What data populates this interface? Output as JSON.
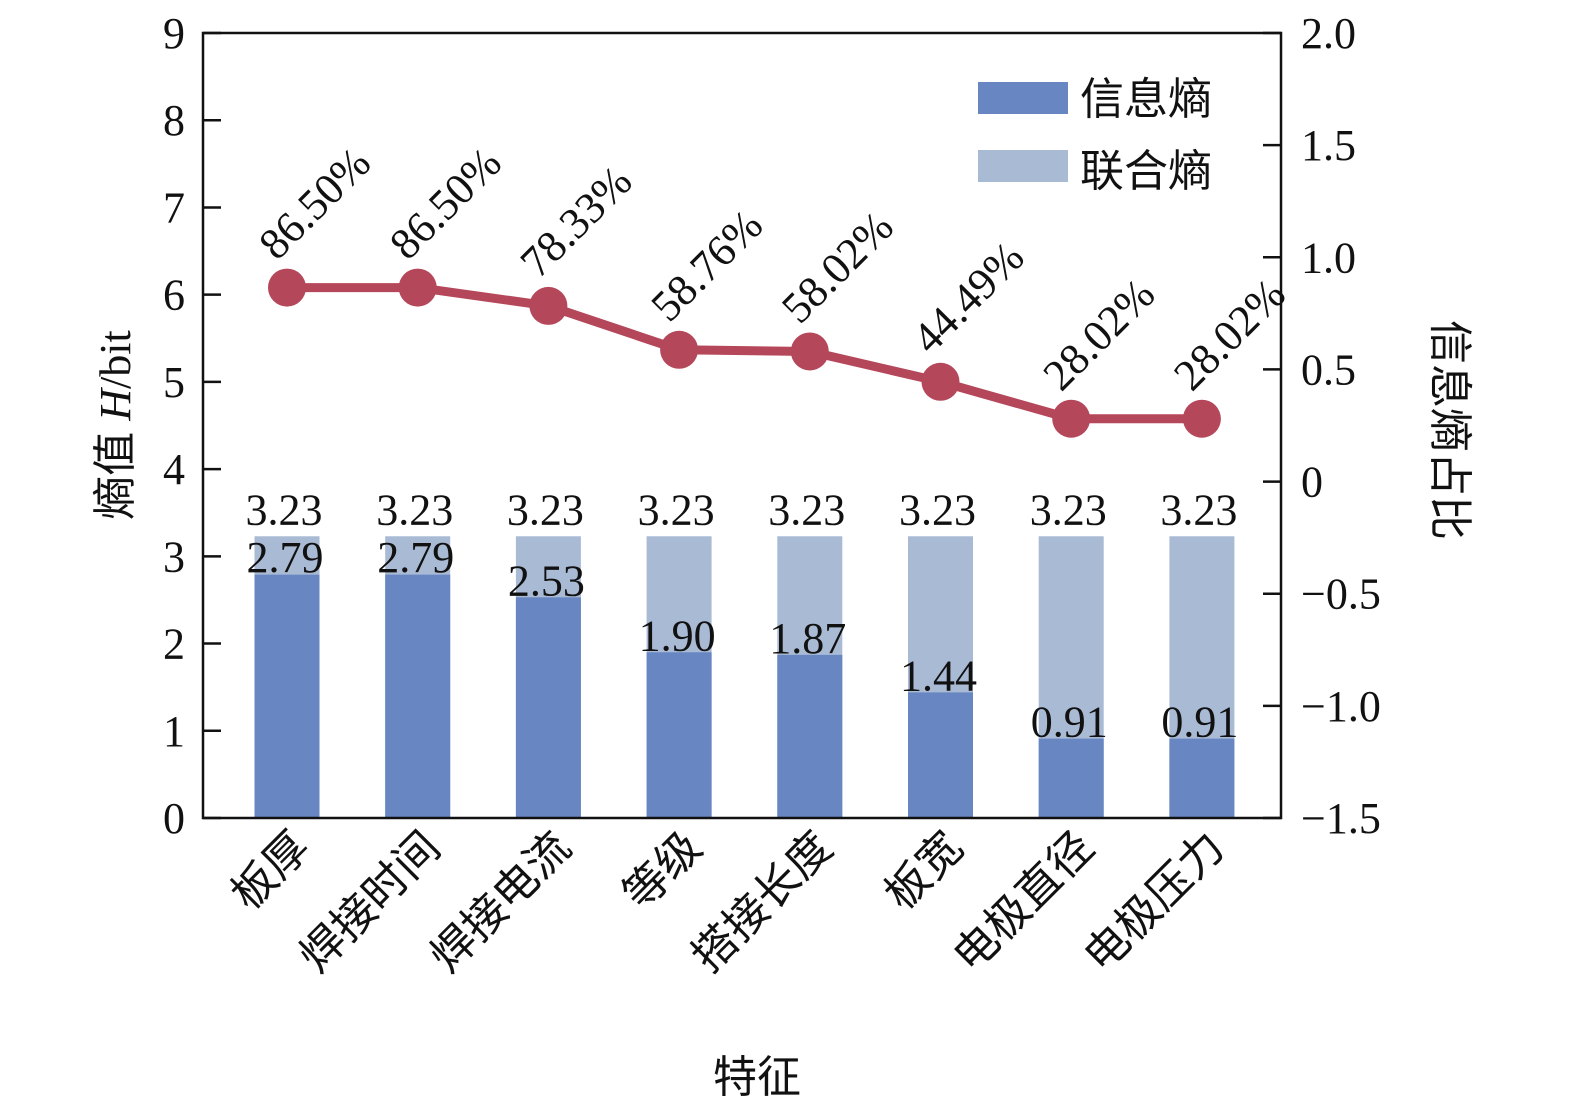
{
  "chart_data": {
    "type": "bar",
    "xlabel": "特征",
    "ylabel": "熵值 H/bit",
    "ylabel_parts": [
      "熵值 ",
      "H",
      "/bit"
    ],
    "y2label": "信息熵占比",
    "ylim": [
      0,
      9
    ],
    "y2lim": [
      -1.5,
      2.0
    ],
    "yticks": [
      "0",
      "1",
      "2",
      "3",
      "4",
      "5",
      "6",
      "7",
      "8",
      "9"
    ],
    "y2ticks": [
      "−1.5",
      "−1.0",
      "−0.5",
      "0",
      "0.5",
      "1.0",
      "1.5",
      "2.0"
    ],
    "categories": [
      "板厚",
      "焊接时间",
      "焊接电流",
      "等级",
      "搭接长度",
      "板宽",
      "电极直径",
      "电极压力"
    ],
    "series": [
      {
        "name": "信息熵",
        "type": "bar",
        "color": "#6786c2",
        "values": [
          2.79,
          2.79,
          2.53,
          1.9,
          1.87,
          1.44,
          0.91,
          0.91
        ],
        "labels": [
          "2.79",
          "2.79",
          "2.53",
          "1.90",
          "1.87",
          "1.44",
          "0.91",
          "0.91"
        ]
      },
      {
        "name": "联合熵",
        "type": "bar",
        "color": "#a9bad4",
        "values": [
          3.23,
          3.23,
          3.23,
          3.23,
          3.23,
          3.23,
          3.23,
          3.23
        ],
        "labels": [
          "3.23",
          "3.23",
          "3.23",
          "3.23",
          "3.23",
          "3.23",
          "3.23",
          "3.23"
        ]
      },
      {
        "name": "信息熵占比",
        "type": "line",
        "axis": "right",
        "color": "#b5475a",
        "values": [
          0.865,
          0.865,
          0.7833,
          0.5876,
          0.5802,
          0.4449,
          0.2802,
          0.2802
        ],
        "labels": [
          "86.50%",
          "86.50%",
          "78.33%",
          "58.76%",
          "58.02%",
          "44.49%",
          "28.02%",
          "28.02%"
        ]
      }
    ],
    "legend": {
      "position": "top-right",
      "entries": [
        "信息熵",
        "联合熵"
      ]
    }
  }
}
